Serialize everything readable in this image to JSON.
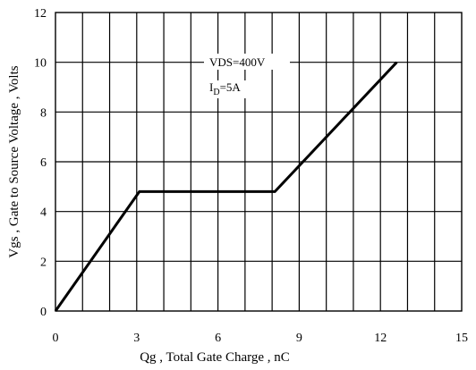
{
  "chart_data": {
    "type": "line",
    "xlabel": "Qg , Total Gate Charge , nC",
    "ylabel": "Vgs , Gate to Source Voltage , Volts",
    "xlim": [
      0,
      15
    ],
    "ylim": [
      0,
      12
    ],
    "x_ticks": [
      "0",
      "3",
      "6",
      "9",
      "12",
      "15"
    ],
    "y_ticks": [
      "0",
      "2",
      "4",
      "6",
      "8",
      "10",
      "12"
    ],
    "grid": true,
    "annotations": {
      "vds": "VDS=400V",
      "id_main": "I",
      "id_sub": "D",
      "id_value": "=5A"
    },
    "series": [
      {
        "x": [
          0,
          3.1,
          8.1,
          12.6
        ],
        "y": [
          0,
          4.8,
          4.8,
          10.0
        ]
      }
    ]
  }
}
